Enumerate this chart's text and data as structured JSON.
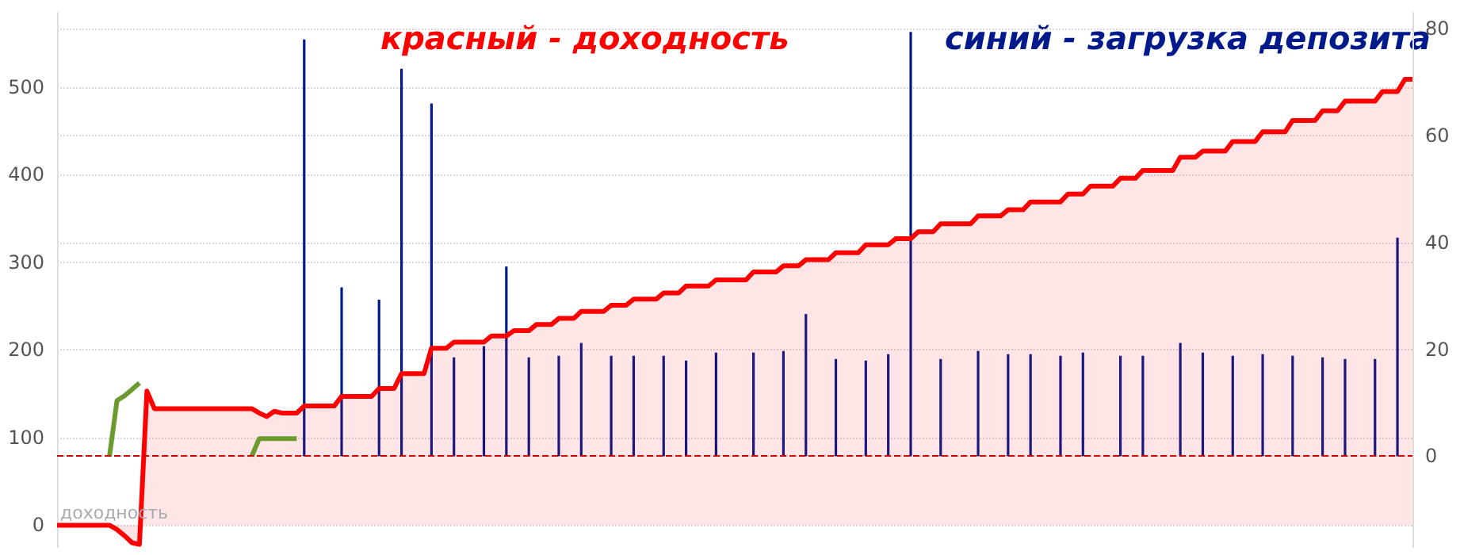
{
  "chart_data": {
    "type": "area",
    "annotations": [
      "красный - доходность",
      "синий - загрузка депозита",
      "доходность"
    ],
    "categories": [
      null,
      null,
      null,
      null,
      null,
      null,
      null,
      null,
      null,
      null,
      null,
      null,
      null,
      null,
      null,
      null,
      null,
      null,
      null,
      null,
      null,
      null,
      null,
      null,
      null,
      null,
      null,
      null,
      null,
      null,
      null,
      null,
      null,
      null,
      null,
      null,
      null,
      null,
      null,
      null,
      null,
      null,
      null,
      null,
      null,
      null,
      null,
      null,
      null,
      null,
      null,
      null,
      null,
      null,
      null,
      null,
      null,
      null,
      null,
      null,
      null,
      null,
      null,
      null,
      null,
      null,
      null,
      null,
      null,
      null,
      null,
      null,
      null,
      null,
      null,
      null,
      null,
      null,
      null,
      null,
      null,
      null,
      null,
      null,
      null,
      null,
      null,
      null,
      null,
      null,
      null,
      null,
      null,
      null,
      null,
      null,
      null,
      null,
      null,
      null,
      null,
      null,
      null,
      null,
      null,
      null,
      null,
      null,
      null,
      null,
      null,
      null,
      null,
      null,
      null,
      null,
      null,
      null,
      null,
      null,
      null,
      null,
      null,
      null,
      null,
      null,
      null,
      null,
      null,
      null,
      null,
      null,
      null,
      null,
      null,
      null,
      null,
      null,
      null,
      null,
      null,
      null,
      null,
      null,
      null,
      null,
      null,
      null,
      null,
      null,
      null,
      null,
      null,
      null,
      null,
      null,
      null,
      null,
      null,
      null,
      null,
      null,
      null,
      null,
      null,
      null,
      null,
      null,
      null,
      null,
      null,
      null,
      null,
      null,
      null,
      null,
      null,
      null,
      null,
      null,
      null,
      null
    ],
    "ylim": [
      -25,
      585
    ],
    "yticks": [
      0,
      100,
      200,
      300,
      400,
      500
    ],
    "y2lim": [
      -17,
      83
    ],
    "y2ticks": [
      0,
      20,
      40,
      60,
      80
    ],
    "tick_labels": "y",
    "grid": "y",
    "ref_lines": [
      {
        "axis": "y2",
        "value": 0,
        "label": null,
        "color": "#cc0000",
        "line_style": "dashed"
      }
    ],
    "series": [
      {
        "color": "#ff0000",
        "values": [
          0,
          0,
          0,
          0,
          0,
          0,
          0,
          0,
          -5,
          -12,
          -20,
          -22,
          153,
          133,
          133,
          133,
          133,
          133,
          133,
          133,
          133,
          133,
          133,
          133,
          133,
          133,
          133,
          128,
          124,
          130,
          128,
          128,
          128,
          136,
          136,
          136,
          136,
          136,
          147,
          147,
          147,
          147,
          147,
          156,
          156,
          156,
          173,
          173,
          173,
          173,
          202,
          202,
          202,
          209,
          209,
          209,
          209,
          209,
          216,
          216,
          216,
          222,
          222,
          222,
          229,
          229,
          229,
          236,
          236,
          236,
          244,
          244,
          244,
          244,
          251,
          251,
          251,
          258,
          258,
          258,
          258,
          265,
          265,
          265,
          273,
          273,
          273,
          273,
          280,
          280,
          280,
          280,
          280,
          289,
          289,
          289,
          289,
          296,
          296,
          296,
          303,
          303,
          303,
          303,
          311,
          311,
          311,
          311,
          320,
          320,
          320,
          320,
          327,
          327,
          327,
          335,
          335,
          335,
          344,
          344,
          344,
          344,
          344,
          353,
          353,
          353,
          353,
          360,
          360,
          360,
          369,
          369,
          369,
          369,
          369,
          378,
          378,
          378,
          387,
          387,
          387,
          387,
          396,
          396,
          396,
          405,
          405,
          405,
          405,
          405,
          420,
          420,
          420,
          427,
          427,
          427,
          427,
          438,
          438,
          438,
          438,
          449,
          449,
          449,
          449,
          462,
          462,
          462,
          462,
          473,
          473,
          473,
          484,
          484,
          484,
          484,
          484,
          495,
          495,
          495,
          509,
          509
        ]
      },
      {
        "type": "bar",
        "axis": "y2",
        "color": "#001a8c",
        "values": [
          null,
          null,
          null,
          null,
          null,
          null,
          null,
          null,
          null,
          null,
          null,
          null,
          null,
          null,
          null,
          null,
          null,
          null,
          null,
          null,
          null,
          null,
          null,
          null,
          null,
          null,
          null,
          null,
          null,
          null,
          null,
          null,
          null,
          78,
          null,
          null,
          null,
          null,
          31.6,
          null,
          null,
          null,
          null,
          29.3,
          null,
          null,
          72.5,
          null,
          null,
          null,
          66,
          null,
          null,
          18.5,
          null,
          null,
          null,
          20.6,
          null,
          null,
          35.5,
          null,
          null,
          18.5,
          null,
          null,
          null,
          18.8,
          null,
          null,
          21.2,
          null,
          null,
          null,
          18.8,
          null,
          null,
          18.8,
          null,
          null,
          null,
          18.8,
          null,
          null,
          17.9,
          null,
          null,
          null,
          19.4,
          null,
          null,
          null,
          null,
          19.4,
          null,
          null,
          null,
          19.7,
          null,
          null,
          26.6,
          null,
          null,
          null,
          18.2,
          null,
          null,
          null,
          17.9,
          null,
          null,
          19.1,
          null,
          null,
          79.4,
          null,
          null,
          null,
          18.2,
          null,
          null,
          null,
          null,
          19.7,
          null,
          null,
          null,
          19.1,
          null,
          null,
          19.1,
          null,
          null,
          null,
          18.8,
          null,
          null,
          19.4,
          null,
          null,
          null,
          null,
          18.8,
          null,
          null,
          18.8,
          null,
          null,
          null,
          null,
          21.2,
          null,
          null,
          19.4,
          null,
          null,
          null,
          18.8,
          null,
          null,
          null,
          19.1,
          null,
          null,
          null,
          18.8,
          null,
          null,
          null,
          18.5,
          null,
          null,
          18.2,
          null,
          null,
          null,
          18.2,
          null,
          null,
          40.9,
          null,
          null
        ]
      },
      {
        "type": "line",
        "axis": "y2",
        "color": "#6b9a2e",
        "values": [
          null,
          null,
          null,
          null,
          null,
          null,
          null,
          0,
          10.4,
          11.3,
          12.5,
          13.7,
          null,
          null,
          null,
          null,
          null,
          null,
          null,
          null,
          null,
          null,
          null,
          null,
          null,
          null,
          0,
          3.3,
          3.3,
          3.3,
          3.3,
          3.3,
          3.3,
          null,
          null,
          null,
          null,
          null,
          null,
          null,
          null,
          null,
          null,
          null,
          null,
          null,
          null,
          null,
          null,
          null,
          null,
          null,
          null,
          null,
          null,
          null,
          null,
          null,
          null,
          null,
          null,
          null,
          null,
          null,
          null,
          null,
          null,
          null,
          null,
          null,
          null,
          null,
          null,
          null,
          null,
          null,
          null,
          null,
          null,
          null,
          null,
          null,
          null,
          null,
          null,
          null,
          null,
          null,
          null,
          null,
          null,
          null,
          null,
          null,
          null,
          null,
          null,
          null,
          null,
          null,
          null,
          null,
          null,
          null,
          null,
          null,
          null,
          null,
          null,
          null,
          null,
          null,
          null,
          null,
          null,
          null,
          null,
          null,
          null,
          null,
          null,
          null,
          null,
          null,
          null,
          null,
          null,
          null,
          null,
          null,
          null,
          null,
          null,
          null,
          null,
          null,
          null,
          null,
          null,
          null,
          null,
          null,
          null,
          null,
          null,
          null,
          null,
          null,
          null,
          null,
          null,
          null,
          null,
          null,
          null,
          null,
          null,
          null,
          null,
          null,
          null,
          null,
          null,
          null,
          null,
          null,
          null,
          null,
          null,
          null,
          null,
          null,
          null,
          null,
          null,
          null,
          null,
          null,
          null,
          null,
          null,
          null
        ]
      }
    ]
  }
}
